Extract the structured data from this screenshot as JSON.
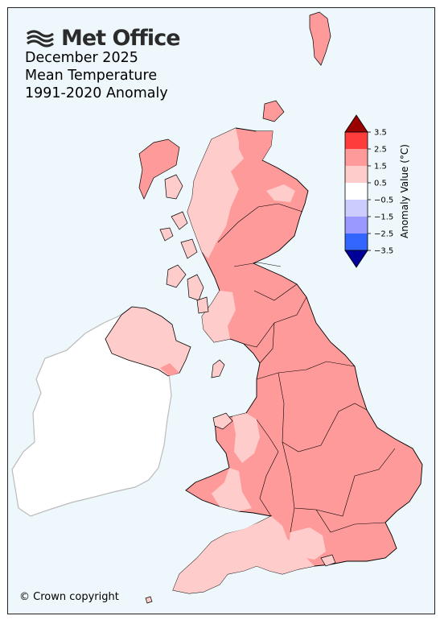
{
  "brand": {
    "name": "Met Office"
  },
  "title": {
    "line1": "December 2025",
    "line2": "Mean Temperature",
    "line3": "1991-2020 Anomaly"
  },
  "copyright": "© Crown copyright",
  "colorbar": {
    "label": "Anomaly Value (°C)",
    "ticks": [
      "3.5",
      "2.5",
      "1.5",
      "0.5",
      "-0.5",
      "-1.5",
      "-2.5",
      "-3.5"
    ],
    "bands": [
      {
        "range": "2.5 to 3.5",
        "color": "#ff3c3c"
      },
      {
        "range": "1.5 to 2.5",
        "color": "#ff9a9a"
      },
      {
        "range": "0.5 to 1.5",
        "color": "#ffcccc"
      },
      {
        "range": "-0.5 to 0.5",
        "color": "#ffffff"
      },
      {
        "range": "-1.5 to -0.5",
        "color": "#ccccff"
      },
      {
        "range": "-2.5 to -1.5",
        "color": "#9999ff"
      },
      {
        "range": "-3.5 to -2.5",
        "color": "#3366ff"
      }
    ],
    "upper_extension_color": "#990000",
    "lower_extension_color": "#000099"
  },
  "colors": {
    "sea": "#eef7fb",
    "ireland": "#ffffff",
    "ireland_border": "#bbbbbb",
    "anomaly_0_5_to_1_5": "#ffcccc",
    "anomaly_1_5_to_2_5": "#ff9a9a",
    "region_border": "#000000"
  }
}
